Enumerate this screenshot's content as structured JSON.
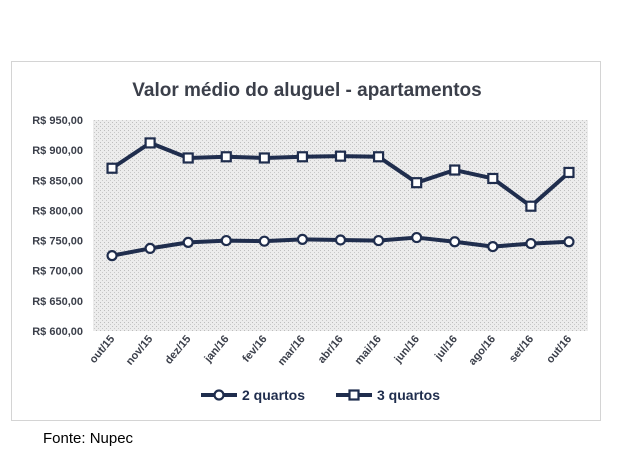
{
  "chart_data": {
    "type": "line",
    "title": "Valor médio do aluguel - apartamentos",
    "xlabel": "",
    "ylabel": "",
    "categories": [
      "out/15",
      "nov/15",
      "dez/15",
      "jan/16",
      "fev/16",
      "mar/16",
      "abr/16",
      "mai/16",
      "jun/16",
      "jul/16",
      "ago/16",
      "set/16",
      "out/16"
    ],
    "yticks": [
      "R$ 600,00",
      "R$ 650,00",
      "R$ 700,00",
      "R$ 750,00",
      "R$ 800,00",
      "R$ 850,00",
      "R$ 900,00",
      "R$ 950,00"
    ],
    "ylim": [
      600,
      950
    ],
    "series": [
      {
        "name": "2 quartos",
        "marker": "circle",
        "values": [
          725,
          737,
          747,
          750,
          749,
          752,
          751,
          750,
          755,
          748,
          740,
          745,
          748
        ]
      },
      {
        "name": "3 quartos",
        "marker": "square",
        "values": [
          870,
          912,
          887,
          889,
          887,
          889,
          890,
          889,
          846,
          867,
          853,
          807,
          863
        ]
      }
    ],
    "line_color": "#1f2d4d",
    "plot_background": "#e8e8e8",
    "grid": false,
    "legend_position": "bottom"
  },
  "source": "Fonte: Nupec"
}
